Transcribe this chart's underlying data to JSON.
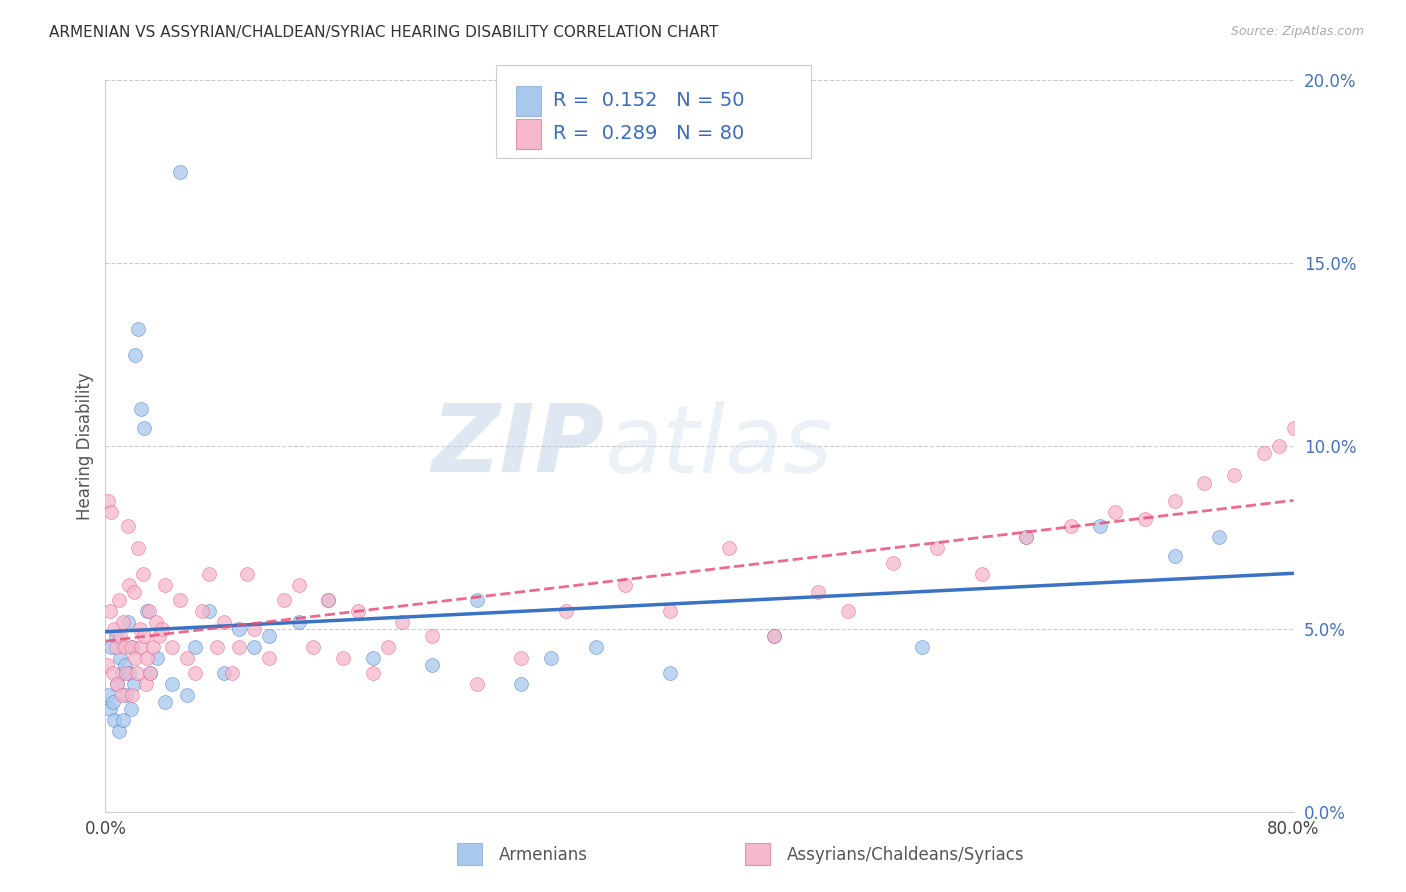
{
  "title": "ARMENIAN VS ASSYRIAN/CHALDEAN/SYRIAC HEARING DISABILITY CORRELATION CHART",
  "source": "Source: ZipAtlas.com",
  "ylabel": "Hearing Disability",
  "legend_label1": "Armenians",
  "legend_label2": "Assyrians/Chaldeans/Syriacs",
  "R1": 0.152,
  "N1": 50,
  "R2": 0.289,
  "N2": 80,
  "color1": "#a8c8ee",
  "color2": "#f5b8cc",
  "line_color1": "#3a72c4",
  "line_color2": "#e8507a",
  "background_color": "#ffffff",
  "xmin": 0.0,
  "xmax": 80.0,
  "ymin": 0.0,
  "ymax": 20.0,
  "right_yvals": [
    0.0,
    5.0,
    10.0,
    15.0,
    20.0
  ],
  "watermark_zip": "ZIP",
  "watermark_atlas": "atlas",
  "armenians_x": [
    0.2,
    0.3,
    0.4,
    0.5,
    0.6,
    0.7,
    0.8,
    0.9,
    1.0,
    1.1,
    1.2,
    1.3,
    1.4,
    1.5,
    1.6,
    1.7,
    1.8,
    1.9,
    2.0,
    2.2,
    2.4,
    2.6,
    2.8,
    3.0,
    3.5,
    4.0,
    4.5,
    5.0,
    5.5,
    6.0,
    7.0,
    8.0,
    9.0,
    10.0,
    11.0,
    13.0,
    15.0,
    18.0,
    22.0,
    25.0,
    28.0,
    30.0,
    33.0,
    38.0,
    45.0,
    55.0,
    62.0,
    67.0,
    72.0,
    75.0
  ],
  "armenians_y": [
    3.2,
    2.8,
    4.5,
    3.0,
    2.5,
    4.8,
    3.5,
    2.2,
    4.2,
    3.8,
    2.5,
    4.0,
    3.2,
    5.2,
    3.8,
    2.8,
    4.5,
    3.5,
    12.5,
    13.2,
    11.0,
    10.5,
    5.5,
    3.8,
    4.2,
    3.0,
    3.5,
    17.5,
    3.2,
    4.5,
    5.5,
    3.8,
    5.0,
    4.5,
    4.8,
    5.2,
    5.8,
    4.2,
    4.0,
    5.8,
    3.5,
    4.2,
    4.5,
    3.8,
    4.8,
    4.5,
    7.5,
    7.8,
    7.0,
    7.5
  ],
  "assyrians_x": [
    0.1,
    0.2,
    0.3,
    0.4,
    0.5,
    0.6,
    0.7,
    0.8,
    0.9,
    1.0,
    1.1,
    1.2,
    1.3,
    1.4,
    1.5,
    1.6,
    1.7,
    1.8,
    1.9,
    2.0,
    2.1,
    2.2,
    2.3,
    2.4,
    2.5,
    2.6,
    2.7,
    2.8,
    2.9,
    3.0,
    3.2,
    3.4,
    3.6,
    3.8,
    4.0,
    4.5,
    5.0,
    5.5,
    6.0,
    6.5,
    7.0,
    7.5,
    8.0,
    8.5,
    9.0,
    9.5,
    10.0,
    11.0,
    12.0,
    13.0,
    14.0,
    15.0,
    16.0,
    17.0,
    18.0,
    19.0,
    20.0,
    22.0,
    25.0,
    28.0,
    31.0,
    35.0,
    38.0,
    42.0,
    45.0,
    48.0,
    50.0,
    53.0,
    56.0,
    59.0,
    62.0,
    65.0,
    68.0,
    70.0,
    72.0,
    74.0,
    76.0,
    78.0,
    79.0,
    80.0
  ],
  "assyrians_y": [
    4.0,
    8.5,
    5.5,
    8.2,
    3.8,
    5.0,
    4.5,
    3.5,
    5.8,
    4.8,
    3.2,
    5.2,
    4.5,
    3.8,
    7.8,
    6.2,
    4.5,
    3.2,
    6.0,
    4.2,
    3.8,
    7.2,
    5.0,
    4.5,
    6.5,
    4.8,
    3.5,
    4.2,
    5.5,
    3.8,
    4.5,
    5.2,
    4.8,
    5.0,
    6.2,
    4.5,
    5.8,
    4.2,
    3.8,
    5.5,
    6.5,
    4.5,
    5.2,
    3.8,
    4.5,
    6.5,
    5.0,
    4.2,
    5.8,
    6.2,
    4.5,
    5.8,
    4.2,
    5.5,
    3.8,
    4.5,
    5.2,
    4.8,
    3.5,
    4.2,
    5.5,
    6.2,
    5.5,
    7.2,
    4.8,
    6.0,
    5.5,
    6.8,
    7.2,
    6.5,
    7.5,
    7.8,
    8.2,
    8.0,
    8.5,
    9.0,
    9.2,
    9.8,
    10.0,
    10.5
  ]
}
